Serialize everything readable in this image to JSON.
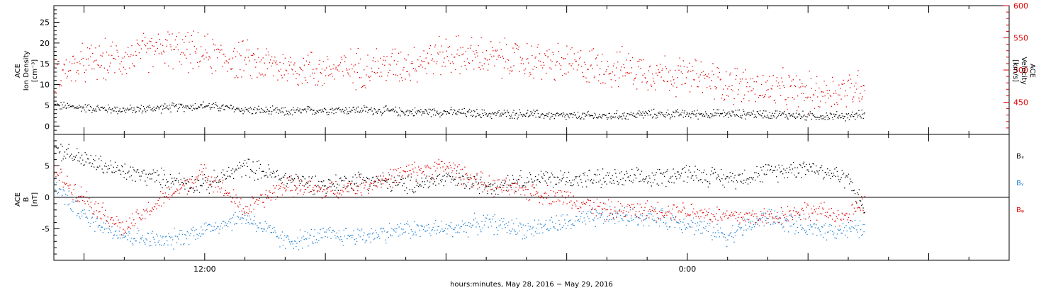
{
  "chart_data": [
    {
      "type": "scatter",
      "panel": "top",
      "left_ylabel": {
        "line1": "ACE",
        "line2": "Ion Density",
        "units": "[cm⁻³]"
      },
      "right_ylabel": {
        "line1": "ACE",
        "line2": "Velocity",
        "units": "[km/s]"
      },
      "left_ylim": [
        -2,
        29
      ],
      "left_yticks": [
        0,
        5,
        10,
        15,
        20,
        25
      ],
      "right_ylim": [
        400,
        600
      ],
      "right_yticks": [
        450,
        500,
        550,
        600
      ],
      "colors": {
        "density": "#000000",
        "velocity": "#e00000"
      },
      "series": [
        {
          "axis": "left",
          "color": "#000000",
          "x": [
            -7.5,
            -6,
            -4,
            -2,
            0,
            2,
            4,
            6,
            8,
            10,
            12,
            14,
            16,
            18,
            20,
            22,
            24,
            26,
            28,
            30,
            32,
            32.8
          ],
          "y": [
            5,
            4.5,
            4,
            4.5,
            5,
            4,
            3.5,
            4,
            4,
            3.5,
            3.5,
            3,
            3,
            2.5,
            2.5,
            3,
            3,
            3,
            3,
            2.5,
            2.5,
            3
          ]
        },
        {
          "axis": "right",
          "color": "#e00000",
          "x": [
            -7.5,
            -6,
            -4,
            -2,
            0,
            2,
            4,
            6,
            8,
            10,
            12,
            14,
            16,
            18,
            20,
            22,
            24,
            26,
            28,
            30,
            32,
            32.8
          ],
          "y": [
            495,
            510,
            520,
            535,
            525,
            515,
            505,
            500,
            505,
            510,
            525,
            520,
            515,
            510,
            505,
            500,
            490,
            480,
            470,
            465,
            470,
            480
          ]
        }
      ]
    },
    {
      "type": "scatter",
      "panel": "bottom",
      "ylabel": {
        "line1": "ACE",
        "line2": "B",
        "units": "[nT]"
      },
      "ylim": [
        -10,
        10
      ],
      "yticks": [
        -5,
        0,
        5
      ],
      "zero_line": true,
      "legend": [
        "Bₓ",
        "Bᵧ",
        "Bᵩ"
      ],
      "colors": {
        "bx": "#000000",
        "by": "#1f7fd1",
        "bz": "#e00000"
      },
      "series": [
        {
          "color": "#000000",
          "x": [
            -7.5,
            -6,
            -4,
            -2,
            0,
            2,
            4,
            6,
            8,
            10,
            12,
            14,
            16,
            18,
            20,
            22,
            24,
            26,
            28,
            30,
            32,
            32.8
          ],
          "y": [
            8,
            6,
            4,
            3,
            2,
            5,
            3,
            2,
            3,
            2,
            3,
            2,
            3,
            3,
            3,
            3,
            4,
            3,
            4,
            5,
            3,
            -2
          ]
        },
        {
          "color": "#1f7fd1",
          "x": [
            -7.5,
            -6,
            -4,
            -2,
            0,
            2,
            4,
            6,
            8,
            10,
            12,
            14,
            16,
            18,
            20,
            22,
            24,
            26,
            28,
            30,
            32,
            32.8
          ],
          "y": [
            2,
            -3,
            -6,
            -7,
            -5,
            -3,
            -7,
            -6,
            -6,
            -5,
            -5,
            -4,
            -5,
            -4,
            -3,
            -3,
            -4,
            -6,
            -3,
            -5,
            -5,
            -5
          ]
        },
        {
          "color": "#e00000",
          "x": [
            -7.5,
            -6,
            -4,
            -2,
            0,
            2,
            4,
            6,
            8,
            10,
            12,
            14,
            16,
            18,
            20,
            22,
            24,
            26,
            28,
            30,
            32,
            32.8
          ],
          "y": [
            4,
            0,
            -5,
            0,
            4,
            -2,
            2,
            1,
            2,
            4,
            5,
            2,
            1,
            0,
            -2,
            -2,
            -2,
            -3,
            -3,
            -2,
            -3,
            -1
          ]
        }
      ]
    }
  ],
  "x_axis": {
    "range": [
      -7.5,
      40
    ],
    "major_ticks": [
      {
        "x": 0,
        "label": "12:00"
      },
      {
        "x": 24,
        "label": "0:00"
      }
    ],
    "title": "hours:minutes, May 28, 2016 − May 29, 2016"
  }
}
